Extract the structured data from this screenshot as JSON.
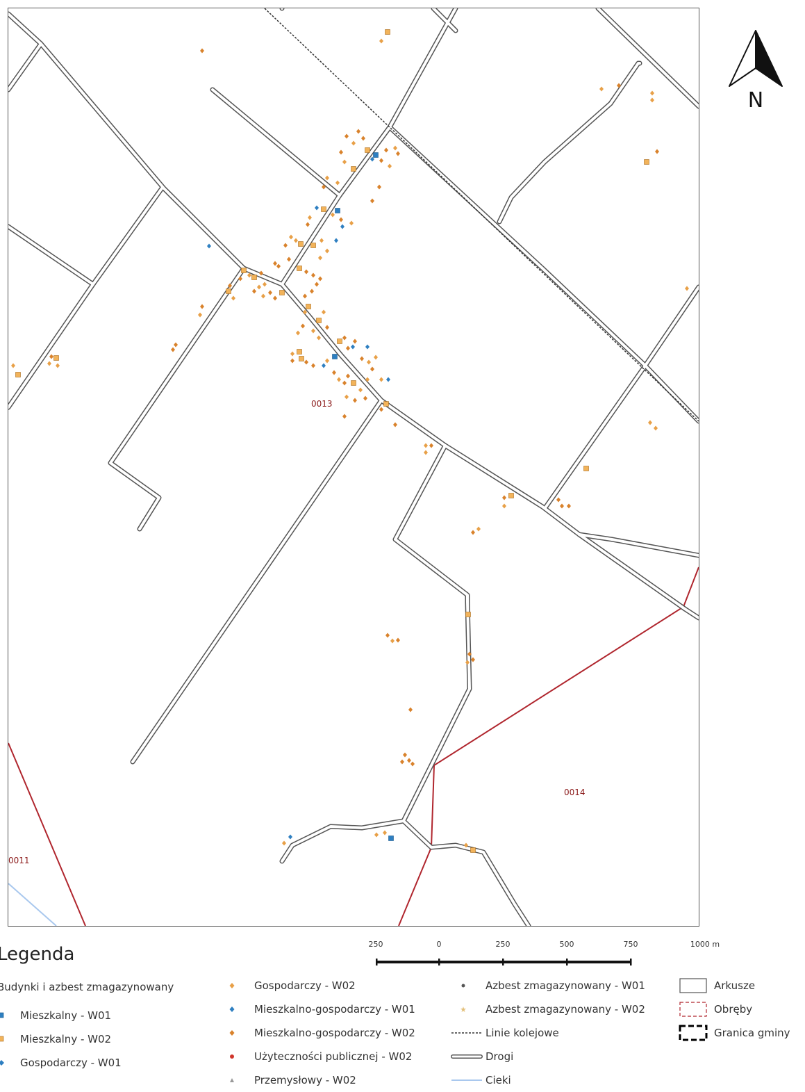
{
  "map": {
    "area_labels": [
      "0013",
      "0014",
      "0011"
    ],
    "north_label": "N",
    "colors": {
      "road_outline": "#555555",
      "boundary": "#b0262e",
      "stream": "#a9c8ee",
      "railway": "#333333",
      "orange_marker": "#e8a047",
      "orange_marker_dark": "#d9822b",
      "blue_marker": "#2e7fc1",
      "area_label": "#8b1a1a"
    }
  },
  "scale": {
    "ticks": [
      "250",
      "0",
      "250",
      "500",
      "750",
      "1000 m"
    ]
  },
  "legend": {
    "title": "Legenda",
    "group_title": "Budynki i azbest zmagazynowany",
    "col1": [
      "Mieszkalny - W01",
      "Mieszkalny - W02",
      "Gospodarczy - W01"
    ],
    "col2": [
      "Gospodarczy - W02",
      "Mieszkalno-gospodarczy - W01",
      "Mieszkalno-gospodarczy - W02",
      "Użyteczności publicznej - W02",
      "Przemysłowy - W02"
    ],
    "col3": [
      "Azbest zmagazynowany - W01",
      "Azbest zmagazynowany - W02",
      "Linie kolejowe",
      "Drogi",
      "Cieki"
    ],
    "col4": [
      "Arkusze",
      "Obręby",
      "Granica gminy"
    ]
  }
}
